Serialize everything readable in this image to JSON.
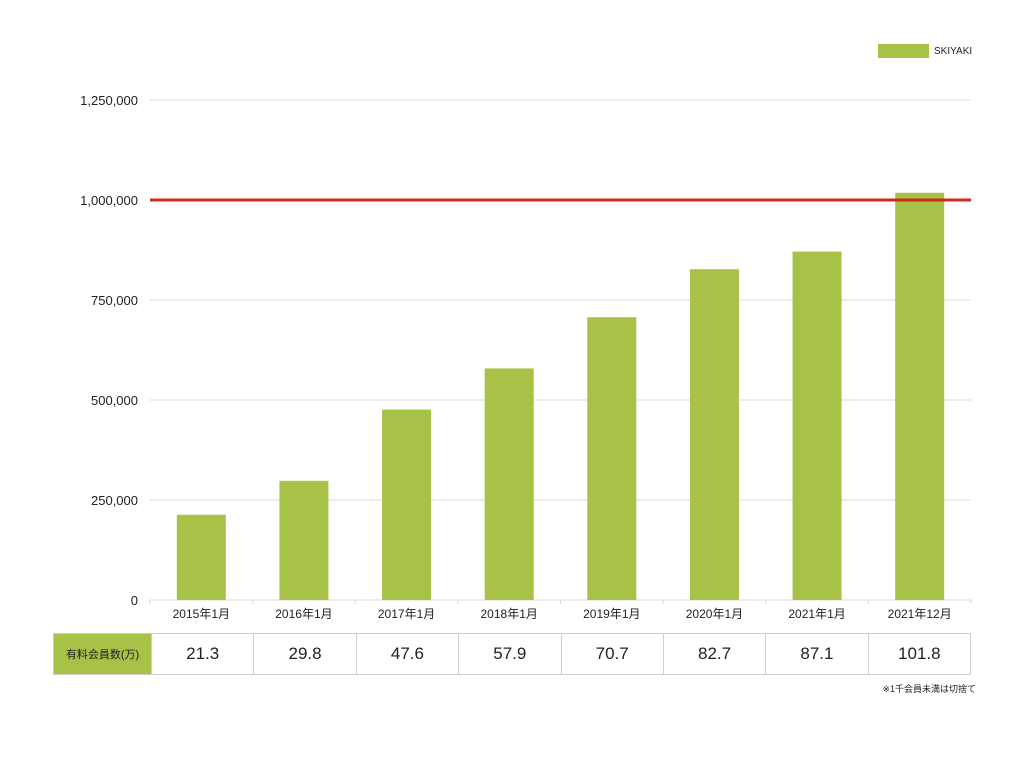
{
  "colors": {
    "bar": "#a8c147",
    "threshold_line": "#cc2a1e",
    "grid": "#d9d9d9"
  },
  "legend": {
    "label": "SKIYAKI"
  },
  "chart_data": {
    "type": "bar",
    "categories": [
      "2015年1月",
      "2016年1月",
      "2017年1月",
      "2018年1月",
      "2019年1月",
      "2020年1月",
      "2021年1月",
      "2021年12月"
    ],
    "series": [
      {
        "name": "SKIYAKI",
        "values": [
          213000,
          298000,
          476000,
          579000,
          707000,
          827000,
          871000,
          1018000
        ]
      }
    ],
    "yticks": [
      0,
      250000,
      500000,
      750000,
      1000000,
      1250000
    ],
    "ytick_labels": [
      "0",
      "250,000",
      "500,000",
      "750,000",
      "1,000,000",
      "1,250,000"
    ],
    "ylim": [
      0,
      1250000
    ],
    "reference_line": 1000000,
    "grid": true,
    "legend_position": "top-right",
    "title": "",
    "xlabel": "",
    "ylabel": ""
  },
  "table": {
    "header": "有料会員数(万)",
    "values": [
      "21.3",
      "29.8",
      "47.6",
      "57.9",
      "70.7",
      "82.7",
      "87.1",
      "101.8"
    ]
  },
  "footnote": "※1千会員未満は切捨て"
}
